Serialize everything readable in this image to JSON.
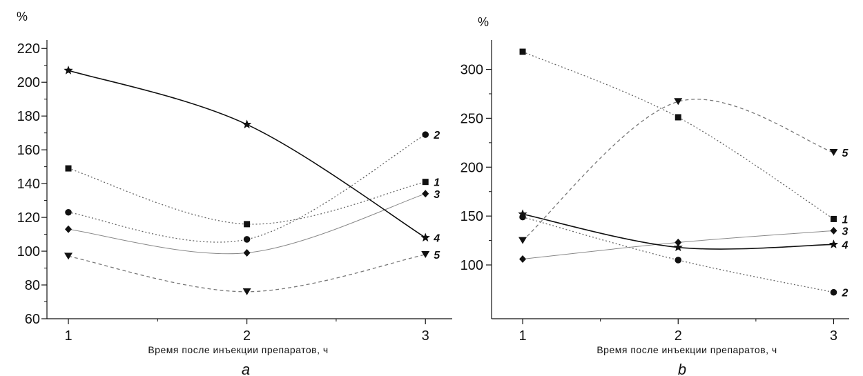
{
  "chart_data": [
    {
      "panel": "a",
      "type": "line",
      "xlabel": "Время после инъекции препаратов, ч",
      "ylabel": "%",
      "x": [
        1,
        2,
        3
      ],
      "xlim": [
        0.88,
        3.15
      ],
      "ylim": [
        60,
        225
      ],
      "yticks": [
        60,
        80,
        100,
        120,
        140,
        160,
        180,
        200,
        220
      ],
      "xticks": [
        1,
        2,
        3
      ],
      "series": [
        {
          "name": "1",
          "values": [
            149,
            116,
            141
          ],
          "style": "dotted",
          "marker": "square",
          "color": "#666666"
        },
        {
          "name": "2",
          "values": [
            123,
            107,
            169
          ],
          "style": "dotted",
          "marker": "circle",
          "color": "#666666"
        },
        {
          "name": "3",
          "values": [
            113,
            99,
            134
          ],
          "style": "solid-thin",
          "marker": "diamond",
          "color": "#888888"
        },
        {
          "name": "4",
          "values": [
            207,
            175,
            108
          ],
          "style": "solid",
          "marker": "star",
          "color": "#111111"
        },
        {
          "name": "5",
          "values": [
            97,
            76,
            98
          ],
          "style": "dashed",
          "marker": "triangle-down",
          "color": "#777777"
        }
      ]
    },
    {
      "panel": "b",
      "type": "line",
      "xlabel": "Время после инъекции препаратов, ч",
      "ylabel": "%",
      "x": [
        1,
        2,
        3
      ],
      "xlim": [
        0.8,
        3.1
      ],
      "ylim": [
        45,
        330
      ],
      "yticks": [
        100,
        150,
        200,
        250,
        300
      ],
      "xticks": [
        1,
        2,
        3
      ],
      "series": [
        {
          "name": "1",
          "values": [
            318,
            251,
            147
          ],
          "style": "dotted",
          "marker": "square",
          "color": "#666666"
        },
        {
          "name": "2",
          "values": [
            149,
            105,
            72
          ],
          "style": "dotted",
          "marker": "circle",
          "color": "#666666"
        },
        {
          "name": "3",
          "values": [
            106,
            123,
            135
          ],
          "style": "solid-thin",
          "marker": "diamond",
          "color": "#888888"
        },
        {
          "name": "4",
          "values": [
            152,
            118,
            121
          ],
          "style": "solid",
          "marker": "star",
          "color": "#111111"
        },
        {
          "name": "5",
          "values": [
            125,
            267,
            215
          ],
          "style": "dashed",
          "marker": "triangle-down",
          "color": "#777777"
        }
      ]
    }
  ]
}
